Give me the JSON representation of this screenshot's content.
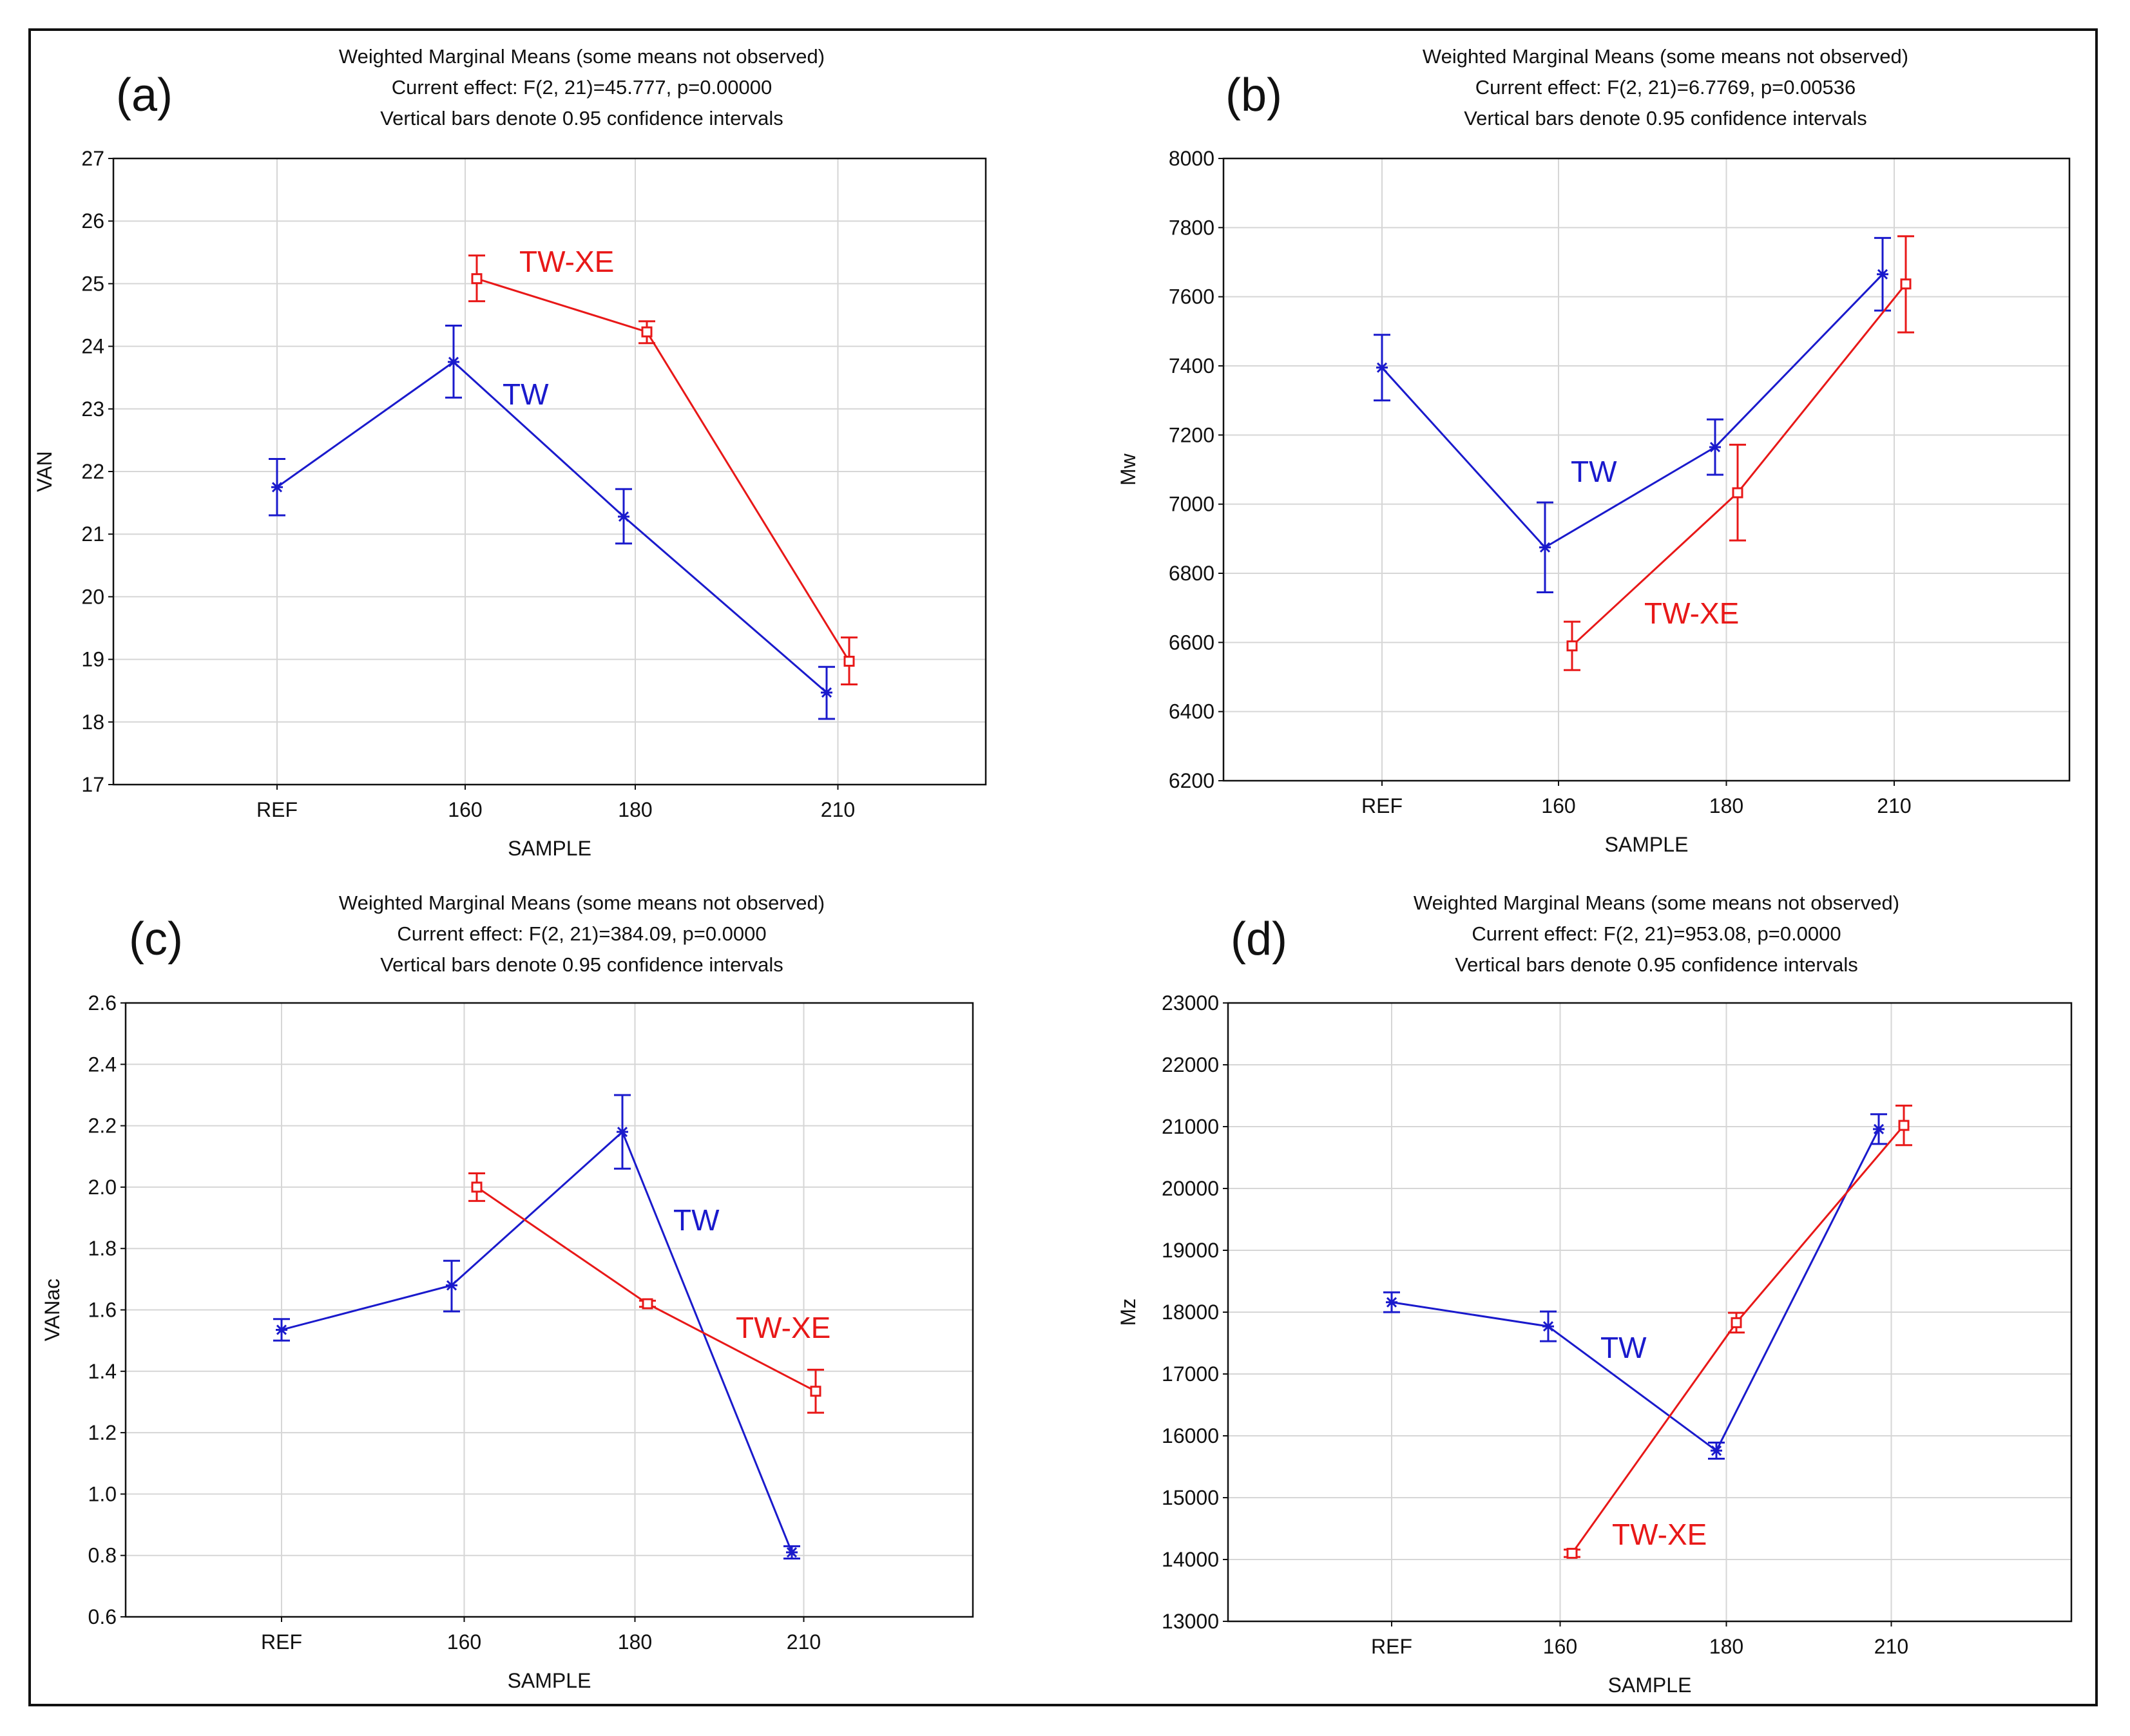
{
  "figure": {
    "colors": {
      "TW": "#1a1acc",
      "TW-XE": "#e81818",
      "grid": "#d6d6d6",
      "axis": "#111111"
    }
  },
  "chart_data": [
    {
      "panel": "(a)",
      "type": "line",
      "title_lines": [
        "Weighted Marginal Means (some means not observed)",
        "Current effect: F(2, 21)=45.777, p=0.00000",
        "Vertical bars denote 0.95 confidence intervals"
      ],
      "xlabel": "SAMPLE",
      "ylabel": "VAN",
      "categories": [
        "REF",
        "160",
        "180",
        "210"
      ],
      "ylim": [
        17,
        27
      ],
      "yticks": [
        "17",
        "18",
        "19",
        "20",
        "21",
        "22",
        "23",
        "24",
        "25",
        "26",
        "27"
      ],
      "grid": true,
      "series": [
        {
          "name": "TW",
          "marker": "star",
          "values": [
            21.75,
            23.75,
            21.28,
            18.47
          ],
          "ci_low": [
            21.3,
            23.18,
            20.85,
            18.05
          ],
          "ci_high": [
            22.2,
            24.33,
            21.72,
            18.88
          ]
        },
        {
          "name": "TW-XE",
          "marker": "square",
          "values": [
            null,
            25.08,
            24.23,
            18.97
          ],
          "ci_low": [
            null,
            24.72,
            24.05,
            18.6
          ],
          "ci_high": [
            null,
            25.45,
            24.4,
            19.35
          ]
        }
      ],
      "annotations": [
        "TW",
        "TW-XE"
      ]
    },
    {
      "panel": "(b)",
      "type": "line",
      "title_lines": [
        "Weighted Marginal Means (some means not observed)",
        "Current effect: F(2, 21)=6.7769, p=0.00536",
        "Vertical bars denote 0.95 confidence intervals"
      ],
      "xlabel": "SAMPLE",
      "ylabel": "Mw",
      "categories": [
        "REF",
        "160",
        "180",
        "210"
      ],
      "ylim": [
        6200,
        8000
      ],
      "yticks": [
        "6200",
        "6400",
        "6600",
        "6800",
        "7000",
        "7200",
        "7400",
        "7600",
        "7800",
        "8000"
      ],
      "grid": true,
      "series": [
        {
          "name": "TW",
          "marker": "star",
          "values": [
            7395,
            6875,
            7165,
            7665
          ],
          "ci_low": [
            7300,
            6745,
            7085,
            7560
          ],
          "ci_high": [
            7490,
            7005,
            7245,
            7770
          ]
        },
        {
          "name": "TW-XE",
          "marker": "square",
          "values": [
            null,
            6590,
            7033,
            7637
          ],
          "ci_low": [
            null,
            6520,
            6895,
            7497
          ],
          "ci_high": [
            null,
            6660,
            7172,
            7775
          ]
        }
      ],
      "annotations": [
        "TW",
        "TW-XE"
      ]
    },
    {
      "panel": "(c)",
      "type": "line",
      "title_lines": [
        "Weighted Marginal Means (some means not observed)",
        "Current effect: F(2, 21)=384.09, p=0.0000",
        "Vertical bars denote 0.95 confidence intervals"
      ],
      "xlabel": "SAMPLE",
      "ylabel": "VANac",
      "categories": [
        "REF",
        "160",
        "180",
        "210"
      ],
      "ylim": [
        0.6,
        2.6
      ],
      "yticks": [
        "0.6",
        "0.8",
        "1.0",
        "1.2",
        "1.4",
        "1.6",
        "1.8",
        "2.0",
        "2.2",
        "2.4",
        "2.6"
      ],
      "grid": true,
      "series": [
        {
          "name": "TW",
          "marker": "star",
          "values": [
            1.535,
            1.68,
            2.18,
            0.81
          ],
          "ci_low": [
            1.5,
            1.595,
            2.06,
            0.79
          ],
          "ci_high": [
            1.57,
            1.76,
            2.3,
            0.83
          ]
        },
        {
          "name": "TW-XE",
          "marker": "square",
          "values": [
            null,
            2.0,
            1.62,
            1.335
          ],
          "ci_low": [
            null,
            1.955,
            1.61,
            1.265
          ],
          "ci_high": [
            null,
            2.045,
            1.63,
            1.405
          ]
        }
      ],
      "annotations": [
        "TW",
        "TW-XE"
      ]
    },
    {
      "panel": "(d)",
      "type": "line",
      "title_lines": [
        "Weighted Marginal Means (some means not observed)",
        "Current effect: F(2, 21)=953.08, p=0.0000",
        "Vertical bars denote 0.95 confidence intervals"
      ],
      "xlabel": "SAMPLE",
      "ylabel": "Mz",
      "categories": [
        "REF",
        "160",
        "180",
        "210"
      ],
      "ylim": [
        13000,
        23000
      ],
      "yticks": [
        "13000",
        "14000",
        "15000",
        "16000",
        "17000",
        "18000",
        "19000",
        "20000",
        "21000",
        "22000",
        "23000"
      ],
      "grid": true,
      "series": [
        {
          "name": "TW",
          "marker": "star",
          "values": [
            18160,
            17770,
            15760,
            20960
          ],
          "ci_low": [
            18000,
            17530,
            15630,
            20720
          ],
          "ci_high": [
            18320,
            18010,
            15890,
            21200
          ]
        },
        {
          "name": "TW-XE",
          "marker": "square",
          "values": [
            null,
            14100,
            17830,
            21020
          ],
          "ci_low": [
            null,
            14040,
            17670,
            20700
          ],
          "ci_high": [
            null,
            14160,
            17990,
            21340
          ]
        }
      ],
      "annotations": [
        "TW",
        "TW-XE"
      ]
    }
  ]
}
